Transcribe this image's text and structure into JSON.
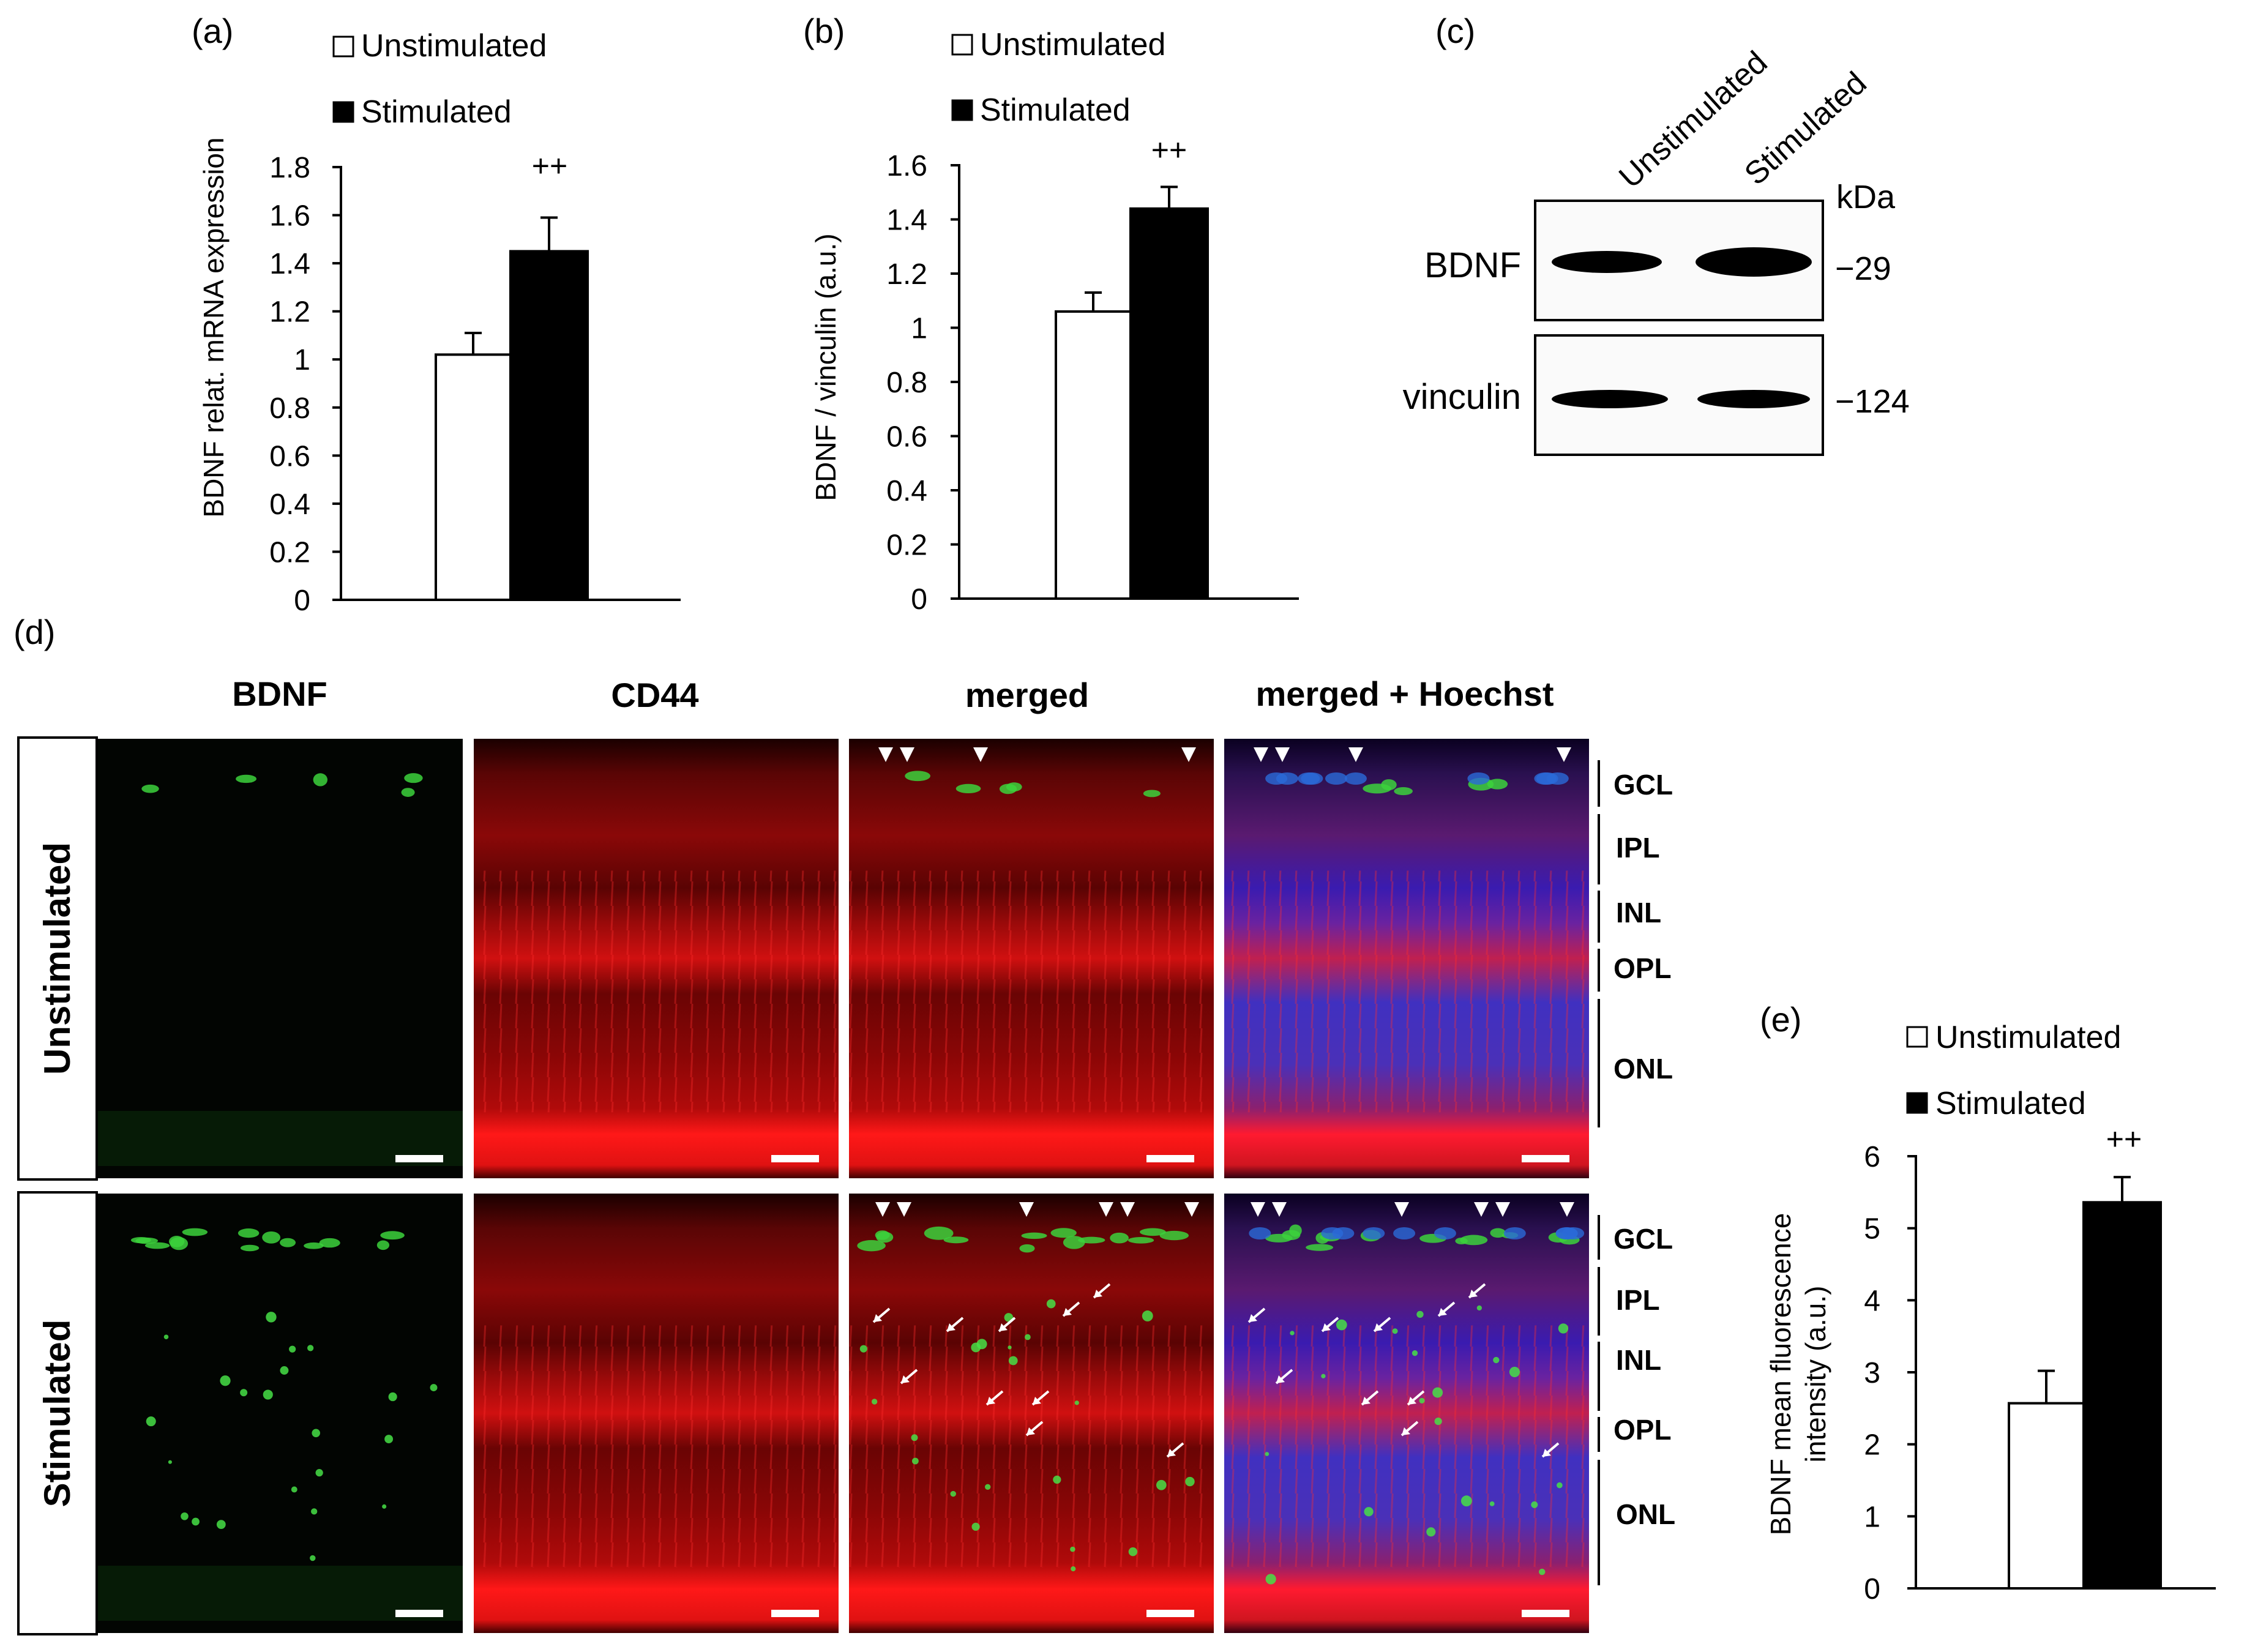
{
  "chart_data": [
    {
      "panel": "(a)",
      "type": "bar",
      "categories": [
        "Unstimulated",
        "Stimulated"
      ],
      "values": [
        1.02,
        1.45
      ],
      "errors": [
        0.09,
        0.14
      ],
      "ylabel": "BDNF relat. mRNA expression",
      "ylim": [
        0,
        1.8
      ],
      "yticks": [
        0,
        0.2,
        0.4,
        0.6,
        0.8,
        1,
        1.2,
        1.4,
        1.6,
        1.8
      ],
      "ytick_labels": [
        "0",
        "0.2",
        "0.4",
        "0.6",
        "0.8",
        "1",
        "1.2",
        "1.4",
        "1.6",
        "1.8"
      ],
      "legend": [
        "Unstimulated",
        "Stimulated"
      ],
      "annotation": "++",
      "colors": [
        "#ffffff",
        "#000000"
      ]
    },
    {
      "panel": "(b)",
      "type": "bar",
      "categories": [
        "Unstimulated",
        "Stimulated"
      ],
      "values": [
        1.06,
        1.44
      ],
      "errors": [
        0.07,
        0.08
      ],
      "ylabel": "BDNF / vinculin (a.u.)",
      "ylim": [
        0,
        1.6
      ],
      "yticks": [
        0,
        0.2,
        0.4,
        0.6,
        0.8,
        1,
        1.2,
        1.4,
        1.6
      ],
      "ytick_labels": [
        "0",
        "0.2",
        "0.4",
        "0.6",
        "0.8",
        "1",
        "1.2",
        "1.4",
        "1.6"
      ],
      "legend": [
        "Unstimulated",
        "Stimulated"
      ],
      "annotation": "++",
      "colors": [
        "#ffffff",
        "#000000"
      ]
    },
    {
      "panel": "(e)",
      "type": "bar",
      "categories": [
        "Unstimulated",
        "Stimulated"
      ],
      "values": [
        2.57,
        5.36
      ],
      "errors": [
        0.45,
        0.35
      ],
      "ylabel": [
        "BDNF mean fluorescence",
        "intensity (a.u.)"
      ],
      "ylim": [
        0,
        6
      ],
      "yticks": [
        0,
        1,
        2,
        3,
        4,
        5,
        6
      ],
      "ytick_labels": [
        "0",
        "1",
        "2",
        "3",
        "4",
        "5",
        "6"
      ],
      "legend": [
        "Unstimulated",
        "Stimulated"
      ],
      "annotation": "++",
      "colors": [
        "#ffffff",
        "#000000"
      ]
    }
  ],
  "western_blot": {
    "panel": "(c)",
    "lanes": [
      "Unstimulated",
      "Stimulated"
    ],
    "unit": "kDa",
    "rows": [
      {
        "label": "BDNF",
        "kda": "−29",
        "intensities": [
          0.12,
          0.45
        ]
      },
      {
        "label": "vinculin",
        "kda": "−124",
        "intensities": [
          0.8,
          0.75
        ]
      }
    ]
  },
  "microscopy": {
    "panel": "(d)",
    "columns": [
      "BDNF",
      "CD44",
      "merged",
      "merged + Hoechst"
    ],
    "rows": [
      "Unstimulated",
      "Stimulated"
    ],
    "layers_unstim": [
      "GCL",
      "IPL",
      "INL",
      "OPL",
      "ONL"
    ],
    "layers_stim": [
      "GCL",
      "IPL",
      "INL",
      "OPL",
      "ONL"
    ]
  }
}
